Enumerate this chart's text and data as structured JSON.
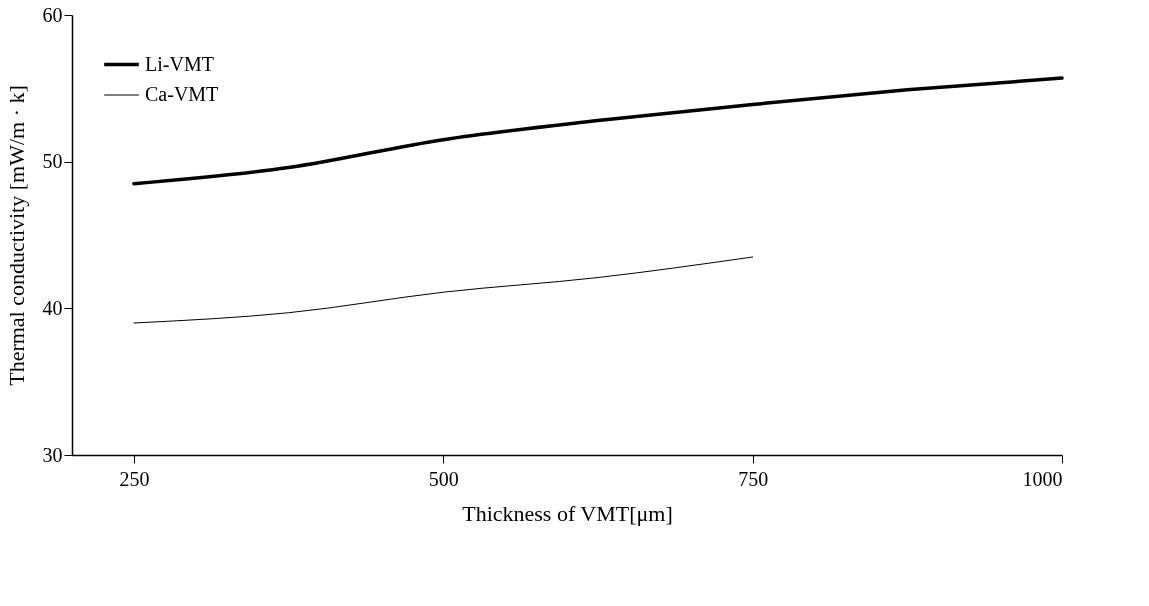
{
  "chart_data": {
    "type": "line",
    "xlabel": "Thickness of VMT[μm]",
    "ylabel": "Thermal conductivity [mW/m · k]",
    "xlim": [
      200,
      1000
    ],
    "xticks": [
      250,
      500,
      750,
      1000
    ],
    "ylim": [
      30,
      60
    ],
    "yticks": [
      30,
      40,
      50,
      60
    ],
    "grid": false,
    "legend": "top left",
    "marker": "none",
    "line_style": "solid",
    "series": [
      {
        "name": "Li-VMT",
        "color": "#000000",
        "x": [
          250,
          375,
          500,
          625,
          750,
          875,
          1000
        ],
        "values": [
          48.5,
          49.6,
          51.5,
          52.8,
          53.9,
          54.9,
          55.7
        ]
      },
      {
        "name": "Ca-VMT",
        "color": "#000000",
        "x": [
          250,
          375,
          500,
          625,
          750
        ],
        "values": [
          39.0,
          39.7,
          41.1,
          42.1,
          43.5
        ]
      }
    ]
  }
}
